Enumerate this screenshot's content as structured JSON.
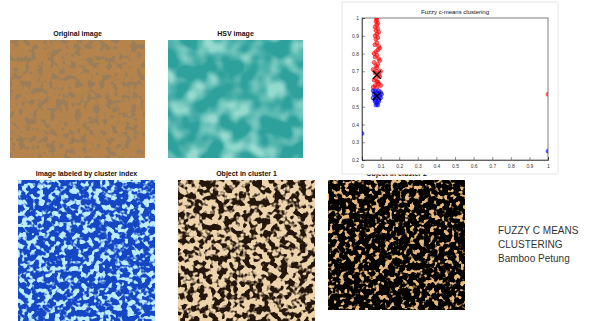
{
  "panels": [
    {
      "title": "Original image"
    },
    {
      "title": "HSV image"
    },
    {
      "title": "Image labeled by cluster index"
    },
    {
      "title": "Object in cluster 1"
    },
    {
      "title": "Object in cluster 2"
    }
  ],
  "caption": [
    "FUZZY C MEANS",
    "CLUSTERING",
    "Bamboo Petung"
  ],
  "chart_data": {
    "type": "scatter",
    "title": "Fuzzy c-means clustering",
    "xlim": [
      0,
      1
    ],
    "ylim": [
      0.2,
      1
    ],
    "xticks": [
      0,
      0.1,
      0.2,
      0.3,
      0.4,
      0.5,
      0.6,
      0.7,
      0.8,
      0.9,
      1
    ],
    "yticks": [
      0.2,
      0.3,
      0.4,
      0.5,
      0.6,
      0.7,
      0.8,
      0.9,
      1
    ],
    "series": [
      {
        "color": "#ff0000",
        "marker": "o",
        "x": [
          0.06,
          0.07,
          0.08,
          0.09,
          0.1,
          0.065,
          0.075,
          0.085,
          0.095,
          0.07,
          0.08,
          0.09,
          0.06,
          0.1,
          0.075,
          0.085,
          0.065,
          0.095,
          0.07,
          0.08,
          0.09,
          0.075,
          0.085,
          0.065,
          0.095,
          0.07,
          0.08,
          0.09,
          0.075,
          0.085,
          0.07,
          0.08,
          0.09,
          0.075,
          0.085,
          0.07,
          0.08,
          0.085,
          0.075,
          0.08,
          0.078,
          0.082,
          0.08,
          1
        ],
        "values": [
          0.61,
          0.62,
          0.61,
          0.63,
          0.62,
          0.65,
          0.66,
          0.64,
          0.67,
          0.69,
          0.7,
          0.68,
          0.71,
          0.7,
          0.73,
          0.74,
          0.75,
          0.76,
          0.78,
          0.79,
          0.77,
          0.81,
          0.82,
          0.8,
          0.83,
          0.85,
          0.86,
          0.84,
          0.88,
          0.89,
          0.9,
          0.91,
          0.92,
          0.93,
          0.94,
          0.95,
          0.96,
          0.97,
          0.98,
          0.99,
          1,
          0.64,
          0.72,
          0.57
        ]
      },
      {
        "color": "#0000ff",
        "marker": "o",
        "x": [
          0.06,
          0.07,
          0.08,
          0.09,
          0.1,
          0.065,
          0.075,
          0.085,
          0.095,
          0.105,
          0.06,
          0.07,
          0.08,
          0.09,
          0.1,
          0.07,
          0.08,
          0.09,
          0.075,
          0.085,
          1,
          0
        ],
        "values": [
          0.59,
          0.59,
          0.58,
          0.59,
          0.58,
          0.57,
          0.56,
          0.57,
          0.56,
          0.57,
          0.55,
          0.54,
          0.55,
          0.54,
          0.55,
          0.53,
          0.52,
          0.53,
          0.51,
          0.51,
          0.25,
          0.35
        ]
      },
      {
        "color": "#000000",
        "marker": "x",
        "x": [
          0.08,
          0.08
        ],
        "values": [
          0.68,
          0.56
        ]
      }
    ]
  }
}
